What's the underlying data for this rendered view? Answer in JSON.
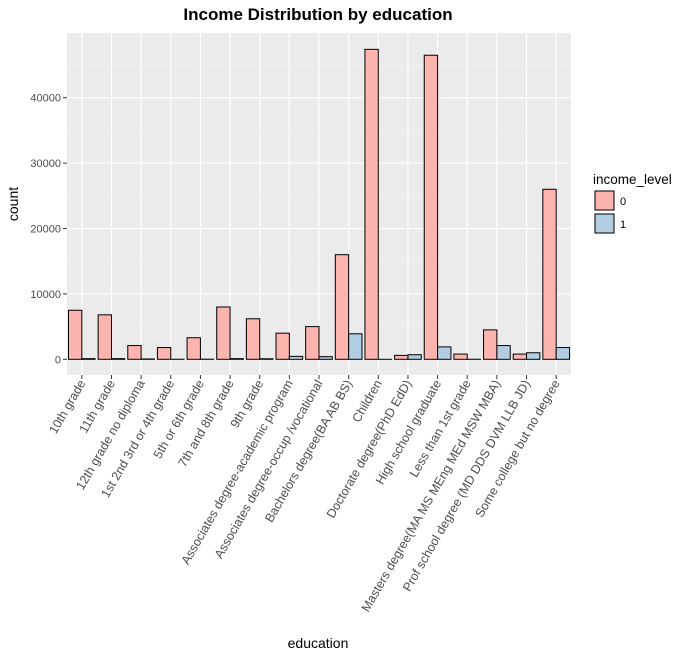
{
  "chart_data": {
    "type": "bar",
    "title": "Income Distribution by education",
    "xlabel": "education",
    "ylabel": "count",
    "ylim": [
      -2400,
      49900
    ],
    "yticks": [
      0,
      10000,
      20000,
      30000,
      40000
    ],
    "grid": true,
    "legend": {
      "title": "income_level",
      "placement": "right"
    },
    "categories": [
      "10th grade",
      "11th grade",
      "12th grade no diploma",
      "1st 2nd 3rd or 4th grade",
      "5th or 6th grade",
      "7th and 8th grade",
      "9th grade",
      "Associates degree-academic program",
      "Associates degree-occup /vocational",
      "Bachelors degree(BA AB BS)",
      "Children",
      "Doctorate degree(PhD EdD)",
      "High school graduate",
      "Less than 1st grade",
      "Masters degree(MA MS MEng MEd MSW MBA)",
      "Prof school degree (MD DDS DVM LLB JD)",
      "Some college but no degree"
    ],
    "series": [
      {
        "name": "0",
        "color": "#fbb4ae",
        "values": [
          7500,
          6800,
          2100,
          1800,
          3300,
          8000,
          6200,
          4000,
          5000,
          16000,
          47400,
          600,
          46500,
          800,
          4500,
          800,
          26000
        ]
      },
      {
        "name": "1",
        "color": "#b3cde3",
        "values": [
          100,
          100,
          50,
          10,
          20,
          100,
          80,
          450,
          400,
          3900,
          0,
          700,
          1900,
          10,
          2100,
          1000,
          1800
        ]
      }
    ]
  }
}
